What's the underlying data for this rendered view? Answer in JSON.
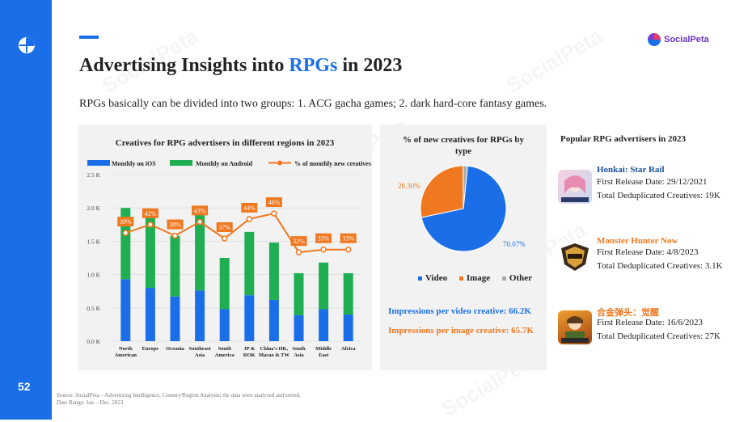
{
  "page": {
    "title_prefix": "Advertising Insights into ",
    "title_highlight": "RPGs",
    "title_suffix": " in 2023",
    "subtitle": "RPGs basically can be divided into two groups: 1. ACG gacha games; 2. dark hard-core fantasy games.",
    "page_number": "52",
    "logo_text": "SocialPeta",
    "watermark_text": "SocialPeta",
    "footer_line1": "Source: SocialPeta – Advertising Intelligence, Country/Region Analysis; the data were analyzed and sorted.",
    "footer_line2": "Date Range: Jan. - Dec. 2023",
    "colors": {
      "accent": "#1a6fe8",
      "ios": "#1a6fe8",
      "android": "#1fae52",
      "line": "#f07820",
      "orange_text": "#f07820"
    }
  },
  "chart_data": [
    {
      "type": "bar",
      "title": "Creatives for RPG advertisers in different regions in 2023",
      "legend": [
        "Monthly on iOS",
        "Monthly on Android",
        "% of monthly new creatives"
      ],
      "categories": [
        [
          "North",
          "American"
        ],
        [
          "Europe"
        ],
        [
          "Oceania"
        ],
        [
          "Southeast",
          "Asia"
        ],
        [
          "South",
          "America"
        ],
        [
          "JP &",
          "ROK"
        ],
        [
          "China's HK,",
          "Macao & TW"
        ],
        [
          "South",
          "Asia"
        ],
        [
          "Middle",
          "East"
        ],
        [
          "Africa"
        ]
      ],
      "yticks": [
        "0.0 K",
        "0.5 K",
        "1.0 K",
        "1.5 K",
        "2.0 K",
        "2.5 K"
      ],
      "ylim": [
        0,
        2.5
      ],
      "series": [
        {
          "name": "Monthly on iOS",
          "values": [
            0.93,
            0.8,
            0.67,
            0.76,
            0.48,
            0.69,
            0.62,
            0.39,
            0.48,
            0.4
          ]
        },
        {
          "name": "Monthly on Android",
          "values": [
            1.07,
            1.15,
            0.91,
            1.17,
            0.77,
            0.95,
            0.86,
            0.63,
            0.7,
            0.62
          ]
        }
      ],
      "pct_series": {
        "name": "% of monthly new creatives",
        "values": [
          39,
          42,
          38,
          43,
          37,
          44,
          46,
          32,
          33,
          33
        ],
        "labels": [
          "39%",
          "42%",
          "38%",
          "43%",
          "37%",
          "44%",
          "46%",
          "32%",
          "33%",
          "33%"
        ],
        "ylim": [
          0,
          60
        ]
      }
    },
    {
      "type": "pie",
      "title_line1": "% of new creatives for RPGs by",
      "title_line2": "type",
      "slices": [
        {
          "name": "Video",
          "value": 70.07,
          "label": "70.07%"
        },
        {
          "name": "Image",
          "value": 28.3,
          "label": "28.30%"
        },
        {
          "name": "Other",
          "value": 1.63
        }
      ],
      "legend": [
        "Video",
        "Image",
        "Other"
      ]
    }
  ],
  "impressions": {
    "video": "Impressions per video creative: 66.2K",
    "image": "Impressions per image creative: 65.7K"
  },
  "popular": {
    "heading": "Popular RPG advertisers in 2023",
    "games": [
      {
        "name": "Honkai: Star Rail",
        "release": "First Release Date: 29/12/2021",
        "creatives": "Total Deduplicated Creatives: 19K",
        "color": "#1a4fa0"
      },
      {
        "name": "Monster Hunter Now",
        "release": "First Release Date: 4/8/2023",
        "creatives": "Total Deduplicated Creatives: 3.1K",
        "color": "#f07820"
      },
      {
        "name": "合金弹头：觉醒",
        "release": "First Release Date: 16/6/2023",
        "creatives": "Total Deduplicated Creatives: 27K",
        "color": "#f07820"
      }
    ]
  }
}
